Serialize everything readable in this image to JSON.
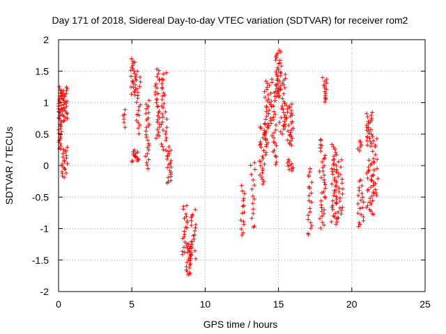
{
  "chart_data": {
    "type": "scatter",
    "title": "Day 171 of 2018, Sidereal Day-to-day VTEC variation (SDTVAR) for receiver rom2",
    "xlabel": "GPS time / hours",
    "ylabel": "SDTVAR / TECUs",
    "xlim": [
      0,
      25
    ],
    "ylim": [
      -2,
      2
    ],
    "xticks": [
      0,
      5,
      10,
      15,
      20,
      25
    ],
    "xtick_labels": [
      "0",
      "5",
      "10",
      "15",
      "20",
      "25"
    ],
    "yticks": [
      -2,
      -1.5,
      -1,
      -0.5,
      0,
      0.5,
      1,
      1.5,
      2
    ],
    "ytick_labels": [
      "-2",
      "-1.5",
      "-1",
      "-0.5",
      "0",
      "0.5",
      "1",
      "1.5",
      "2"
    ],
    "grid": true,
    "marker": "+",
    "color": "#ff0000",
    "series": [
      {
        "name": "rom2",
        "clusters": [
          {
            "x0": 0.0,
            "x1": 0.2,
            "y0": 0.25,
            "y1": 1.25,
            "n": 40
          },
          {
            "x0": 0.2,
            "x1": 0.6,
            "y0": 0.7,
            "y1": 1.25,
            "n": 30
          },
          {
            "x0": 0.2,
            "x1": 0.6,
            "y0": -0.2,
            "y1": 0.3,
            "n": 20
          },
          {
            "x0": 4.4,
            "x1": 4.6,
            "y0": 0.6,
            "y1": 0.9,
            "n": 6
          },
          {
            "x0": 4.9,
            "x1": 5.3,
            "y0": 1.1,
            "y1": 1.7,
            "n": 25
          },
          {
            "x0": 5.0,
            "x1": 5.5,
            "y0": 0.05,
            "y1": 0.25,
            "n": 15
          },
          {
            "x0": 5.3,
            "x1": 5.6,
            "y0": 0.5,
            "y1": 1.5,
            "n": 20
          },
          {
            "x0": 5.9,
            "x1": 6.2,
            "y0": -0.05,
            "y1": 1.05,
            "n": 25
          },
          {
            "x0": 6.6,
            "x1": 6.9,
            "y0": 0.4,
            "y1": 1.55,
            "n": 30
          },
          {
            "x0": 7.0,
            "x1": 7.4,
            "y0": 0.2,
            "y1": 1.5,
            "n": 30
          },
          {
            "x0": 7.4,
            "x1": 7.7,
            "y0": -0.3,
            "y1": 0.3,
            "n": 20
          },
          {
            "x0": 8.4,
            "x1": 8.8,
            "y0": -1.45,
            "y1": -0.6,
            "n": 20
          },
          {
            "x0": 8.7,
            "x1": 9.1,
            "y0": -1.75,
            "y1": -1.2,
            "n": 25
          },
          {
            "x0": 9.0,
            "x1": 9.4,
            "y0": -1.5,
            "y1": -0.7,
            "n": 20
          },
          {
            "x0": 12.4,
            "x1": 12.7,
            "y0": -1.15,
            "y1": -0.3,
            "n": 15
          },
          {
            "x0": 13.1,
            "x1": 13.4,
            "y0": -1.05,
            "y1": 0.1,
            "n": 15
          },
          {
            "x0": 13.7,
            "x1": 14.2,
            "y0": -0.3,
            "y1": 0.7,
            "n": 30
          },
          {
            "x0": 14.0,
            "x1": 14.5,
            "y0": 0.3,
            "y1": 1.35,
            "n": 35
          },
          {
            "x0": 14.5,
            "x1": 14.9,
            "y0": 0.0,
            "y1": 1.4,
            "n": 30
          },
          {
            "x0": 14.8,
            "x1": 15.2,
            "y0": 1.1,
            "y1": 1.85,
            "n": 30
          },
          {
            "x0": 15.0,
            "x1": 15.5,
            "y0": 0.5,
            "y1": 1.5,
            "n": 30
          },
          {
            "x0": 15.4,
            "x1": 16.0,
            "y0": 0.3,
            "y1": 1.0,
            "n": 30
          },
          {
            "x0": 15.6,
            "x1": 16.1,
            "y0": -0.1,
            "y1": 0.1,
            "n": 10
          },
          {
            "x0": 17.0,
            "x1": 17.3,
            "y0": -1.15,
            "y1": 0.0,
            "n": 20
          },
          {
            "x0": 17.8,
            "x1": 18.2,
            "y0": -1.0,
            "y1": 0.45,
            "n": 35
          },
          {
            "x0": 18.0,
            "x1": 18.3,
            "y0": 1.0,
            "y1": 1.4,
            "n": 15
          },
          {
            "x0": 18.6,
            "x1": 19.0,
            "y0": -0.95,
            "y1": 0.35,
            "n": 35
          },
          {
            "x0": 18.9,
            "x1": 19.4,
            "y0": -0.9,
            "y1": 0.1,
            "n": 30
          },
          {
            "x0": 20.4,
            "x1": 20.8,
            "y0": -1.0,
            "y1": -0.2,
            "n": 20
          },
          {
            "x0": 20.4,
            "x1": 20.7,
            "y0": 0.2,
            "y1": 0.4,
            "n": 6
          },
          {
            "x0": 21.0,
            "x1": 21.5,
            "y0": -0.8,
            "y1": 0.1,
            "n": 30
          },
          {
            "x0": 21.0,
            "x1": 21.4,
            "y0": 0.3,
            "y1": 0.85,
            "n": 25
          },
          {
            "x0": 21.4,
            "x1": 21.8,
            "y0": -0.5,
            "y1": 0.5,
            "n": 20
          }
        ]
      }
    ]
  }
}
